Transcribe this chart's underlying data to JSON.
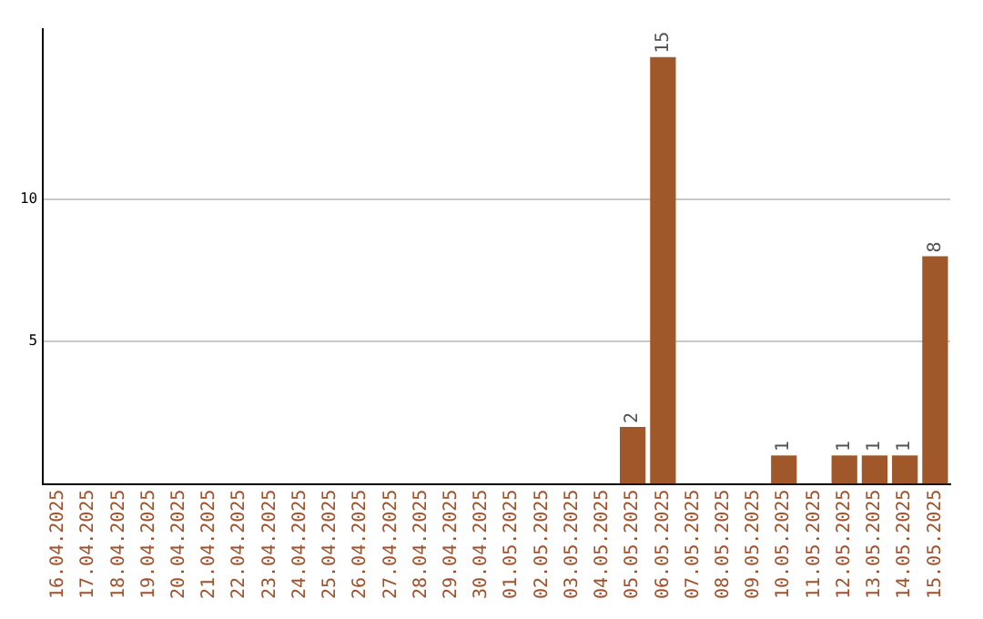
{
  "chart_data": {
    "type": "bar",
    "categories": [
      "16.04.2025",
      "17.04.2025",
      "18.04.2025",
      "19.04.2025",
      "20.04.2025",
      "21.04.2025",
      "22.04.2025",
      "23.04.2025",
      "24.04.2025",
      "25.04.2025",
      "26.04.2025",
      "27.04.2025",
      "28.04.2025",
      "29.04.2025",
      "30.04.2025",
      "01.05.2025",
      "02.05.2025",
      "03.05.2025",
      "04.05.2025",
      "05.05.2025",
      "06.05.2025",
      "07.05.2025",
      "08.05.2025",
      "09.05.2025",
      "10.05.2025",
      "11.05.2025",
      "12.05.2025",
      "13.05.2025",
      "14.05.2025",
      "15.05.2025"
    ],
    "values": [
      0,
      0,
      0,
      0,
      0,
      0,
      0,
      0,
      0,
      0,
      0,
      0,
      0,
      0,
      0,
      0,
      0,
      0,
      0,
      2,
      15,
      0,
      0,
      0,
      1,
      0,
      1,
      1,
      1,
      8
    ],
    "value_labels": [
      null,
      null,
      null,
      null,
      null,
      null,
      null,
      null,
      null,
      null,
      null,
      null,
      null,
      null,
      null,
      null,
      null,
      null,
      null,
      "2",
      "15",
      null,
      null,
      null,
      "1",
      null,
      "1",
      "1",
      "1",
      "8"
    ],
    "color": "#a0572a",
    "ylim": [
      0,
      16
    ],
    "yticks": [
      5,
      10
    ],
    "grid": "y"
  }
}
